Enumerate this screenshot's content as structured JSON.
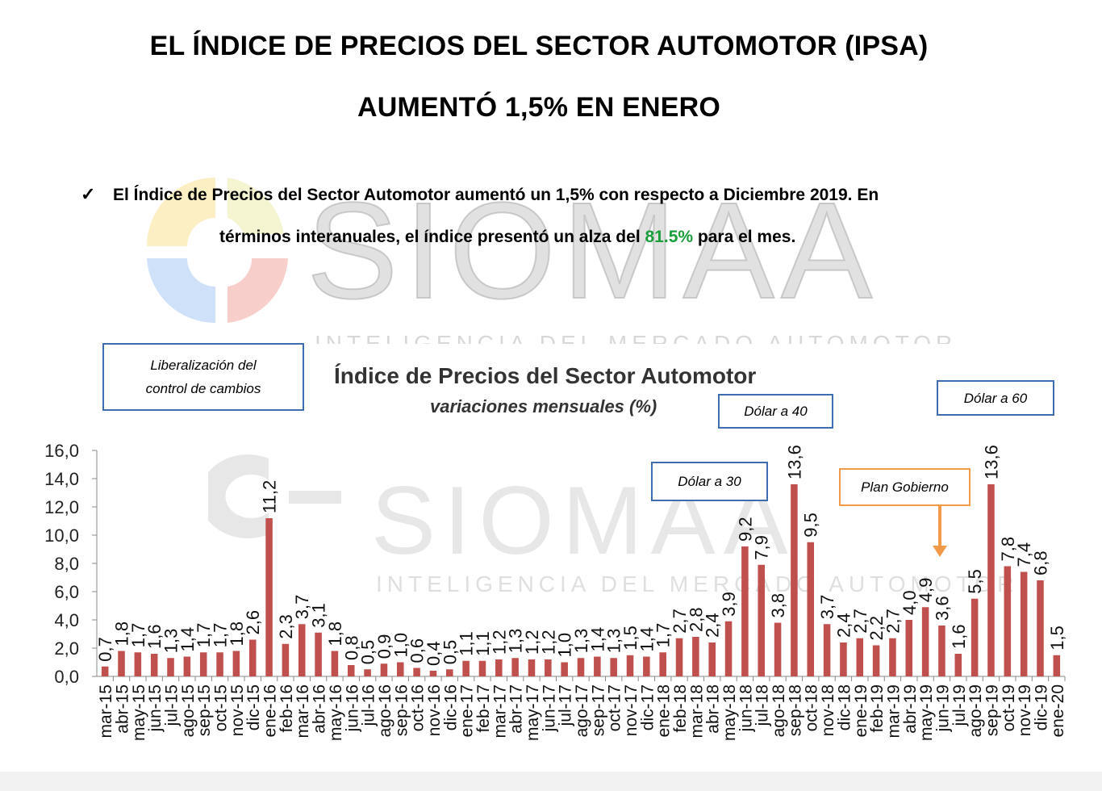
{
  "header": {
    "title_line1": "EL ÍNDICE DE PRECIOS DEL SECTOR AUTOMOTOR (IPSA)",
    "title_line2": "AUMENTÓ 1,5% EN ENERO"
  },
  "summary": {
    "bullet": "✓",
    "line1": "El Índice de Precios del Sector Automotor aumentó un 1,5% con respecto a Diciembre 2019. En",
    "line2_before": "términos interanuales, el índice presentó un alza del",
    "line2_highlight": "81.5%",
    "line2_after": "para el mes.",
    "highlight_color": "#1a9e3c"
  },
  "watermark": {
    "brand": "SIOMAA",
    "tagline": "INTELIGENCIA DEL MERCADO AUTOMOTOR"
  },
  "annotations": {
    "liberalizacion": "Liberalización del control de cambios",
    "dolar30": "Dólar a 30",
    "dolar40": "Dólar a 40",
    "dolar60": "Dólar a 60",
    "plan": "Plan Gobierno"
  },
  "chart_data": {
    "type": "bar",
    "title": "Índice de Precios del Sector Automotor",
    "subtitle": "variaciones mensuales (%)",
    "ylim": [
      0,
      16
    ],
    "yticks": [
      "0,0",
      "2,0",
      "4,0",
      "6,0",
      "8,0",
      "10,0",
      "12,0",
      "14,0",
      "16,0"
    ],
    "bar_color": "#c0504d",
    "categories": [
      "mar-15",
      "abr-15",
      "may-15",
      "jun-15",
      "jul-15",
      "ago-15",
      "sep-15",
      "oct-15",
      "nov-15",
      "dic-15",
      "ene-16",
      "feb-16",
      "mar-16",
      "abr-16",
      "may-16",
      "jun-16",
      "jul-16",
      "ago-16",
      "sep-16",
      "oct-16",
      "nov-16",
      "dic-16",
      "ene-17",
      "feb-17",
      "mar-17",
      "abr-17",
      "may-17",
      "jun-17",
      "jul-17",
      "ago-17",
      "sep-17",
      "oct-17",
      "nov-17",
      "dic-17",
      "ene-18",
      "feb-18",
      "mar-18",
      "abr-18",
      "may-18",
      "jun-18",
      "jul-18",
      "ago-18",
      "sep-18",
      "oct-18",
      "nov-18",
      "dic-18",
      "ene-19",
      "feb-19",
      "mar-19",
      "abr-19",
      "may-19",
      "jun-19",
      "jul-19",
      "ago-19",
      "sep-19",
      "oct-19",
      "nov-19",
      "dic-19",
      "ene-20"
    ],
    "values": [
      0.7,
      1.8,
      1.7,
      1.6,
      1.3,
      1.4,
      1.7,
      1.7,
      1.8,
      2.6,
      11.2,
      2.3,
      3.7,
      3.1,
      1.8,
      0.8,
      0.5,
      0.9,
      1.0,
      0.6,
      0.4,
      0.5,
      1.1,
      1.1,
      1.2,
      1.3,
      1.2,
      1.2,
      1.0,
      1.3,
      1.4,
      1.3,
      1.5,
      1.4,
      1.7,
      2.7,
      2.8,
      2.4,
      3.9,
      9.2,
      7.9,
      3.8,
      13.6,
      9.5,
      3.7,
      2.4,
      2.7,
      2.2,
      2.7,
      4.0,
      4.9,
      3.6,
      1.6,
      5.5,
      13.6,
      7.8,
      7.4,
      6.8,
      1.5
    ],
    "labels": [
      "0,7",
      "1,8",
      "1,7",
      "1,6",
      "1,3",
      "1,4",
      "1,7",
      "1,7",
      "1,8",
      "2,6",
      "11,2",
      "2,3",
      "3,7",
      "3,1",
      "1,8",
      "0,8",
      "0,5",
      "0,9",
      "1,0",
      "0,6",
      "0,4",
      "0,5",
      "1,1",
      "1,1",
      "1,2",
      "1,3",
      "1,2",
      "1,2",
      "1,0",
      "1,3",
      "1,4",
      "1,3",
      "1,5",
      "1,4",
      "1,7",
      "2,7",
      "2,8",
      "2,4",
      "3,9",
      "9,2",
      "7,9",
      "3,8",
      "13,6",
      "9,5",
      "3,7",
      "2,4",
      "2,7",
      "2,2",
      "2,7",
      "4,0",
      "4,9",
      "3,6",
      "1,6",
      "5,5",
      "13,6",
      "7,8",
      "7,4",
      "6,8",
      "1,5"
    ]
  }
}
